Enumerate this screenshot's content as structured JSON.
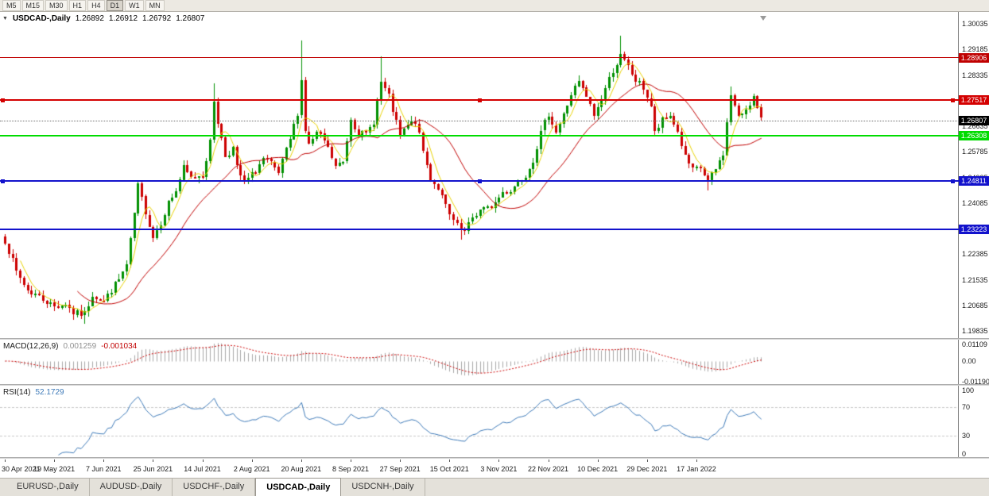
{
  "toolbar": {
    "buttons": [
      "M5",
      "M15",
      "M30",
      "H1",
      "H4",
      "D1",
      "W1",
      "MN"
    ],
    "active": "D1"
  },
  "chart": {
    "header": {
      "collapse_icon": "▼",
      "symbol": "USDCAD-,Daily",
      "open": "1.26892",
      "high": "1.26912",
      "low": "1.26792",
      "close": "1.26807"
    },
    "price_axis": {
      "labels": [
        "1.30035",
        "1.29185",
        "1.28335",
        "1.27485",
        "1.26635",
        "1.25785",
        "1.24935",
        "1.24085",
        "1.23235",
        "1.22385",
        "1.21535",
        "1.20685",
        "1.19835"
      ]
    },
    "hlines": [
      {
        "price": 1.28906,
        "label": "1.28906",
        "color": "#C00000",
        "width": 1,
        "handles": false
      },
      {
        "price": 1.27517,
        "label": "1.27517",
        "color": "#D40000",
        "width": 2,
        "handles": true
      },
      {
        "price": 1.26308,
        "label": "1.26308",
        "color": "#00DC00",
        "width": 2,
        "handles": false
      },
      {
        "price": 1.24811,
        "label": "1.24811",
        "color": "#1212CC",
        "width": 2,
        "handles": true
      },
      {
        "price": 1.23223,
        "label": "1.23223",
        "color": "#1212CC",
        "width": 2,
        "handles": false
      }
    ],
    "current_price": {
      "price": 1.26807,
      "label": "1.26807",
      "badge_color": "#000000"
    }
  },
  "chart_data": {
    "type": "candlestick",
    "symbol": "USDCAD-",
    "timeframe": "Daily",
    "bars": 200,
    "price_range": {
      "max": 1.3043,
      "min": 1.196
    },
    "x_labels": [
      {
        "text": "30 Apr 2021",
        "i": 0
      },
      {
        "text": "19 May 2021",
        "i": 13
      },
      {
        "text": "7 Jun 2021",
        "i": 26
      },
      {
        "text": "25 Jun 2021",
        "i": 39
      },
      {
        "text": "14 Jul 2021",
        "i": 52
      },
      {
        "text": "2 Aug 2021",
        "i": 65
      },
      {
        "text": "20 Aug 2021",
        "i": 78
      },
      {
        "text": "8 Sep 2021",
        "i": 91
      },
      {
        "text": "27 Sep 2021",
        "i": 104
      },
      {
        "text": "15 Oct 2021",
        "i": 117
      },
      {
        "text": "3 Nov 2021",
        "i": 130
      },
      {
        "text": "22 Nov 2021",
        "i": 143
      },
      {
        "text": "10 Dec 2021",
        "i": 156
      },
      {
        "text": "29 Dec 2021",
        "i": 169
      },
      {
        "text": "17 Jan 2022",
        "i": 182
      }
    ],
    "waypoints": [
      [
        0,
        1.2285
      ],
      [
        3,
        1.218
      ],
      [
        6,
        1.212
      ],
      [
        9,
        1.2098
      ],
      [
        13,
        1.2065
      ],
      [
        16,
        1.2075
      ],
      [
        18,
        1.2042
      ],
      [
        21,
        1.204
      ],
      [
        23,
        1.2105
      ],
      [
        26,
        1.2082
      ],
      [
        28,
        1.212
      ],
      [
        30,
        1.2155
      ],
      [
        32,
        1.22
      ],
      [
        33,
        1.228
      ],
      [
        35,
        1.2465
      ],
      [
        37,
        1.238
      ],
      [
        39,
        1.2295
      ],
      [
        41,
        1.2345
      ],
      [
        43,
        1.241
      ],
      [
        45,
        1.245
      ],
      [
        47,
        1.2525
      ],
      [
        49,
        1.249
      ],
      [
        52,
        1.2505
      ],
      [
        54,
        1.261
      ],
      [
        55,
        1.275
      ],
      [
        56,
        1.268
      ],
      [
        58,
        1.2565
      ],
      [
        60,
        1.259
      ],
      [
        61,
        1.2525
      ],
      [
        63,
        1.2475
      ],
      [
        65,
        1.25
      ],
      [
        68,
        1.2555
      ],
      [
        70,
        1.2535
      ],
      [
        72,
        1.2505
      ],
      [
        75,
        1.262
      ],
      [
        77,
        1.271
      ],
      [
        78,
        1.2815
      ],
      [
        79,
        1.265
      ],
      [
        80,
        1.26
      ],
      [
        82,
        1.264
      ],
      [
        84,
        1.2615
      ],
      [
        87,
        1.253
      ],
      [
        89,
        1.2545
      ],
      [
        91,
        1.269
      ],
      [
        93,
        1.264
      ],
      [
        95,
        1.2635
      ],
      [
        97,
        1.268
      ],
      [
        99,
        1.281
      ],
      [
        101,
        1.276
      ],
      [
        104,
        1.263
      ],
      [
        106,
        1.2665
      ],
      [
        108,
        1.268
      ],
      [
        110,
        1.258
      ],
      [
        112,
        1.249
      ],
      [
        114,
        1.246
      ],
      [
        117,
        1.2365
      ],
      [
        119,
        1.233
      ],
      [
        121,
        1.231
      ],
      [
        123,
        1.236
      ],
      [
        125,
        1.2385
      ],
      [
        127,
        1.239
      ],
      [
        129,
        1.241
      ],
      [
        131,
        1.2445
      ],
      [
        133,
        1.245
      ],
      [
        135,
        1.248
      ],
      [
        137,
        1.2505
      ],
      [
        139,
        1.2555
      ],
      [
        141,
        1.264
      ],
      [
        143,
        1.2705
      ],
      [
        145,
        1.2645
      ],
      [
        147,
        1.27
      ],
      [
        149,
        1.277
      ],
      [
        151,
        1.281
      ],
      [
        153,
        1.276
      ],
      [
        155,
        1.27
      ],
      [
        156,
        1.2725
      ],
      [
        158,
        1.279
      ],
      [
        160,
        1.285
      ],
      [
        162,
        1.2895
      ],
      [
        164,
        1.286
      ],
      [
        166,
        1.2815
      ],
      [
        168,
        1.279
      ],
      [
        170,
        1.273
      ],
      [
        171,
        1.264
      ],
      [
        173,
        1.268
      ],
      [
        175,
        1.27
      ],
      [
        177,
        1.2645
      ],
      [
        179,
        1.256
      ],
      [
        181,
        1.2515
      ],
      [
        183,
        1.2525
      ],
      [
        185,
        1.248
      ],
      [
        187,
        1.252
      ],
      [
        189,
        1.2575
      ],
      [
        191,
        1.277
      ],
      [
        193,
        1.269
      ],
      [
        195,
        1.2725
      ],
      [
        197,
        1.276
      ],
      [
        199,
        1.2681
      ]
    ],
    "spikes": [
      {
        "i": 21,
        "type": "low",
        "price": 1.2007
      },
      {
        "i": 55,
        "type": "high",
        "price": 1.2807
      },
      {
        "i": 78,
        "type": "high",
        "price": 1.2949
      },
      {
        "i": 99,
        "type": "high",
        "price": 1.2896
      },
      {
        "i": 120,
        "type": "low",
        "price": 1.2288
      },
      {
        "i": 162,
        "type": "high",
        "price": 1.2964
      },
      {
        "i": 185,
        "type": "low",
        "price": 1.245
      },
      {
        "i": 191,
        "type": "high",
        "price": 1.2796
      }
    ],
    "ma": [
      {
        "period": 5,
        "color": "#E8D200"
      },
      {
        "period": 20,
        "color": "#C00000"
      }
    ],
    "macd": {
      "label": "MACD(12,26,9)",
      "value1": "0.001259",
      "value2": "-0.001034",
      "axis": [
        "0.01109",
        "0.00",
        "-0.01190"
      ],
      "range": [
        -0.0135,
        0.0125
      ]
    },
    "rsi": {
      "label": "RSI(14)",
      "value": "52.1729",
      "axis": [
        "100",
        "70",
        "30",
        "0"
      ],
      "levels": [
        70,
        30
      ]
    },
    "colors": {
      "up": "#009000",
      "down": "#CC0000",
      "macd_hist": "#A8A8A8",
      "macd_signal": "#CC0000",
      "rsi_line": "#3E7AB8",
      "rsi_level": "#C8C8C8"
    }
  },
  "tabs": [
    {
      "label": "EURUSD-,Daily",
      "active": false
    },
    {
      "label": "AUDUSD-,Daily",
      "active": false
    },
    {
      "label": "USDCHF-,Daily",
      "active": false
    },
    {
      "label": "USDCAD-,Daily",
      "active": true
    },
    {
      "label": "USDCNH-,Daily",
      "active": false
    }
  ]
}
